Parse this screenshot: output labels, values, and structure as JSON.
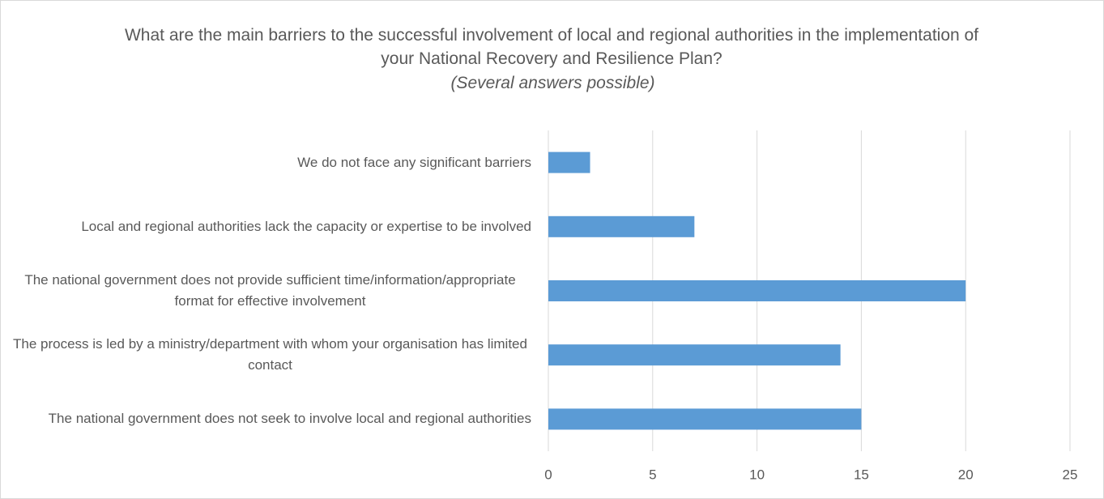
{
  "chart_data": {
    "type": "bar",
    "orientation": "horizontal",
    "title": "What are the main barriers to the successful involvement of local and regional authorities in the implementation of your National Recovery and Resilience Plan?",
    "subtitle": "(Several answers possible)",
    "categories": [
      "We do not face any significant barriers",
      "Local and regional authorities lack the capacity or expertise to be involved",
      "The national government does not provide sufficient time/information/appropriate format for effective involvement",
      "The process is led by a ministry/department with whom your organisation has limited contact",
      "The national government does not seek to involve local and regional authorities"
    ],
    "values": [
      2,
      7,
      20,
      14,
      15
    ],
    "color": "#5b9bd5",
    "xlim": [
      0,
      25
    ],
    "xticks": [
      0,
      5,
      10,
      15,
      20,
      25
    ],
    "grid": true
  }
}
